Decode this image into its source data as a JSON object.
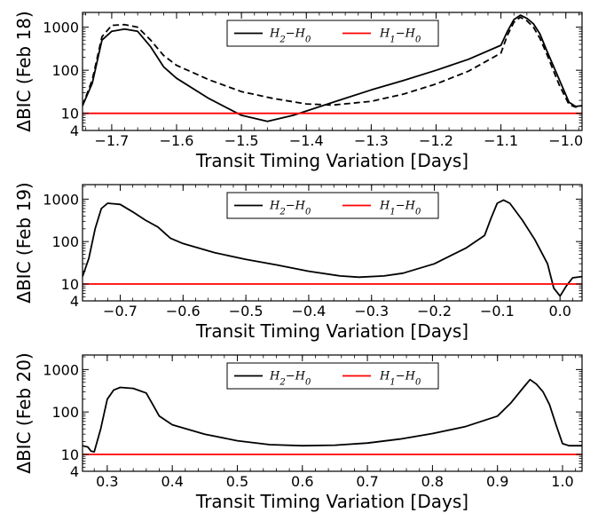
{
  "chart_data": [
    {
      "type": "line",
      "xlabel": "Transit Timing Variation [Days]",
      "ylabel": "ΔBIC (Feb 18)",
      "xlim": [
        -1.745,
        -0.975
      ],
      "ylim": [
        4,
        2200
      ],
      "yscale": "log",
      "xticks": [
        -1.7,
        -1.6,
        -1.5,
        -1.4,
        -1.3,
        -1.2,
        -1.1,
        -1.0
      ],
      "xtick_labels": [
        "−1.7",
        "−1.6",
        "−1.5",
        "−1.4",
        "−1.3",
        "−1.2",
        "−1.1",
        "−1.0"
      ],
      "yticks": [
        4,
        10,
        100,
        1000
      ],
      "ytick_labels": [
        "4",
        "10",
        "100",
        "1000"
      ],
      "legend": {
        "position": "top-center",
        "entries": [
          "H₂−H₀",
          "H₁−H₀"
        ]
      },
      "series": [
        {
          "name": "H₂−H₀",
          "color": "#000000",
          "style": "solid",
          "x": [
            -1.745,
            -1.73,
            -1.715,
            -1.7,
            -1.68,
            -1.66,
            -1.64,
            -1.62,
            -1.6,
            -1.55,
            -1.5,
            -1.46,
            -1.42,
            -1.35,
            -1.3,
            -1.25,
            -1.2,
            -1.15,
            -1.1,
            -1.09,
            -1.08,
            -1.07,
            -1.06,
            -1.05,
            -1.04,
            -1.03,
            -1.01,
            -0.995,
            -0.985,
            -0.975
          ],
          "y": [
            15,
            50,
            500,
            800,
            900,
            800,
            350,
            120,
            65,
            22,
            9,
            6.5,
            9,
            20,
            35,
            58,
            100,
            180,
            380,
            800,
            1500,
            1900,
            1600,
            1200,
            700,
            300,
            60,
            18,
            14.5,
            15
          ]
        },
        {
          "name": "H₂−H₀ (dashed)",
          "color": "#000000",
          "style": "dashed",
          "x": [
            -1.745,
            -1.73,
            -1.715,
            -1.7,
            -1.68,
            -1.66,
            -1.64,
            -1.62,
            -1.6,
            -1.55,
            -1.5,
            -1.45,
            -1.4,
            -1.36,
            -1.3,
            -1.25,
            -1.2,
            -1.15,
            -1.1,
            -1.09,
            -1.08,
            -1.07,
            -1.06,
            -1.05,
            -1.04,
            -1.03,
            -1.01,
            -0.995,
            -0.985,
            -0.975
          ],
          "y": [
            15,
            60,
            600,
            1100,
            1150,
            1000,
            500,
            220,
            130,
            60,
            32,
            22,
            16.5,
            15.5,
            19,
            28,
            48,
            95,
            250,
            650,
            1300,
            1700,
            1400,
            1000,
            550,
            250,
            45,
            16,
            14,
            15
          ]
        },
        {
          "name": "H₁−H₀",
          "color": "#ff0000",
          "style": "solid",
          "x": [
            -1.745,
            -0.975
          ],
          "y": [
            10,
            10
          ]
        }
      ]
    },
    {
      "type": "line",
      "xlabel": "Transit Timing Variation [Days]",
      "ylabel": "ΔBIC (Feb 19)",
      "xlim": [
        -0.76,
        0.035
      ],
      "ylim": [
        4,
        2200
      ],
      "yscale": "log",
      "xticks": [
        -0.7,
        -0.6,
        -0.5,
        -0.4,
        -0.3,
        -0.2,
        -0.1,
        0.0
      ],
      "xtick_labels": [
        "−0.7",
        "−0.6",
        "−0.5",
        "−0.4",
        "−0.3",
        "−0.2",
        "−0.1",
        "0.0"
      ],
      "yticks": [
        4,
        10,
        100,
        1000
      ],
      "ytick_labels": [
        "4",
        "10",
        "100",
        "1000"
      ],
      "legend": {
        "position": "top-center",
        "entries": [
          "H₂−H₀",
          "H₁−H₀"
        ]
      },
      "series": [
        {
          "name": "H₂−H₀",
          "color": "#000000",
          "style": "solid",
          "x": [
            -0.76,
            -0.75,
            -0.74,
            -0.73,
            -0.72,
            -0.7,
            -0.68,
            -0.66,
            -0.64,
            -0.62,
            -0.6,
            -0.55,
            -0.5,
            -0.45,
            -0.4,
            -0.35,
            -0.32,
            -0.28,
            -0.25,
            -0.2,
            -0.15,
            -0.12,
            -0.11,
            -0.1,
            -0.09,
            -0.08,
            -0.06,
            -0.04,
            -0.02,
            -0.01,
            0.0,
            0.01,
            0.02,
            0.035
          ],
          "y": [
            15,
            40,
            200,
            600,
            800,
            750,
            500,
            320,
            220,
            120,
            90,
            55,
            38,
            28,
            20,
            15.5,
            14.5,
            15.5,
            18,
            30,
            70,
            140,
            350,
            800,
            950,
            800,
            320,
            110,
            30,
            8,
            5.2,
            9,
            14,
            15
          ]
        },
        {
          "name": "H₁−H₀",
          "color": "#ff0000",
          "style": "solid",
          "x": [
            -0.76,
            0.035
          ],
          "y": [
            10,
            10
          ]
        }
      ]
    },
    {
      "type": "line",
      "xlabel": "Transit Timing Variation [Days]",
      "ylabel": "ΔBIC (Feb 20)",
      "xlim": [
        0.262,
        1.03
      ],
      "ylim": [
        4,
        2200
      ],
      "yscale": "log",
      "xticks": [
        0.3,
        0.4,
        0.5,
        0.6,
        0.7,
        0.8,
        0.9,
        1.0
      ],
      "xtick_labels": [
        "0.3",
        "0.4",
        "0.5",
        "0.6",
        "0.7",
        "0.8",
        "0.9",
        "1.0"
      ],
      "yticks": [
        4,
        10,
        100,
        1000
      ],
      "ytick_labels": [
        "4",
        "10",
        "100",
        "1000"
      ],
      "legend": {
        "position": "top-center",
        "entries": [
          "H₂−H₀",
          "H₁−H₀"
        ]
      },
      "series": [
        {
          "name": "H₂−H₀",
          "color": "#000000",
          "style": "solid",
          "x": [
            0.262,
            0.27,
            0.275,
            0.28,
            0.29,
            0.3,
            0.31,
            0.32,
            0.34,
            0.36,
            0.37,
            0.38,
            0.4,
            0.45,
            0.5,
            0.55,
            0.6,
            0.65,
            0.7,
            0.75,
            0.8,
            0.85,
            0.9,
            0.92,
            0.94,
            0.95,
            0.96,
            0.97,
            0.98,
            0.99,
            1.0,
            1.01,
            1.03
          ],
          "y": [
            16,
            15,
            12,
            11.5,
            40,
            200,
            330,
            380,
            360,
            280,
            150,
            80,
            50,
            30,
            21,
            17,
            16,
            16.5,
            18.5,
            23,
            31,
            45,
            80,
            160,
            380,
            580,
            450,
            300,
            150,
            50,
            18,
            16,
            16
          ]
        },
        {
          "name": "H₁−H₀",
          "color": "#ff0000",
          "style": "solid",
          "x": [
            0.262,
            1.03
          ],
          "y": [
            10,
            10
          ]
        }
      ]
    }
  ]
}
